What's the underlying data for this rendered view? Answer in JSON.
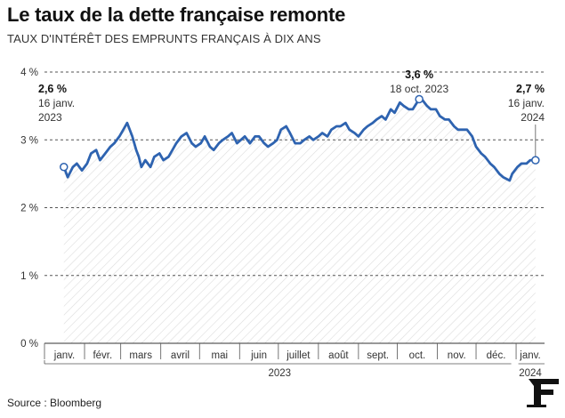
{
  "title": "Le taux de la dette française remonte",
  "subtitle": "TAUX D'INTÉRÊT DES EMPRUNTS FRANÇAIS À DIX ANS",
  "source": "Source : Bloomberg",
  "colors": {
    "line": "#2e63b0",
    "grid": "#555555",
    "hatch": "#dcdcdc",
    "text": "#333333"
  },
  "chart_data": {
    "type": "line",
    "ylim": [
      0,
      4
    ],
    "yticks": [
      {
        "value": 0,
        "label": "0 %"
      },
      {
        "value": 1,
        "label": "1 %"
      },
      {
        "value": 2,
        "label": "2 %"
      },
      {
        "value": 3,
        "label": "3 %"
      },
      {
        "value": 4,
        "label": "4 %"
      }
    ],
    "xlim": [
      "2023-01-01",
      "2024-01-23"
    ],
    "month_labels": [
      {
        "label": "janv.",
        "date": "2023-01-01"
      },
      {
        "label": "févr.",
        "date": "2023-02-01"
      },
      {
        "label": "mars",
        "date": "2023-03-01"
      },
      {
        "label": "avril",
        "date": "2023-04-01"
      },
      {
        "label": "mai",
        "date": "2023-05-01"
      },
      {
        "label": "juin",
        "date": "2023-06-01"
      },
      {
        "label": "juillet",
        "date": "2023-07-01"
      },
      {
        "label": "août",
        "date": "2023-08-01"
      },
      {
        "label": "sept.",
        "date": "2023-09-01"
      },
      {
        "label": "oct.",
        "date": "2023-10-01"
      },
      {
        "label": "nov.",
        "date": "2023-11-01"
      },
      {
        "label": "déc.",
        "date": "2023-12-01"
      },
      {
        "label": "janv.",
        "date": "2024-01-01"
      }
    ],
    "year_labels": [
      {
        "label": "2023",
        "date": "2023-07-02"
      },
      {
        "label": "2024",
        "date": "2024-01-12"
      }
    ],
    "series": [
      {
        "points": [
          [
            "2023-01-16",
            2.6
          ],
          [
            "2023-01-19",
            2.45
          ],
          [
            "2023-01-23",
            2.6
          ],
          [
            "2023-01-26",
            2.65
          ],
          [
            "2023-01-30",
            2.55
          ],
          [
            "2023-02-03",
            2.65
          ],
          [
            "2023-02-06",
            2.8
          ],
          [
            "2023-02-10",
            2.85
          ],
          [
            "2023-02-13",
            2.7
          ],
          [
            "2023-02-17",
            2.8
          ],
          [
            "2023-02-21",
            2.9
          ],
          [
            "2023-02-24",
            2.95
          ],
          [
            "2023-02-28",
            3.05
          ],
          [
            "2023-03-03",
            3.15
          ],
          [
            "2023-03-06",
            3.25
          ],
          [
            "2023-03-10",
            3.05
          ],
          [
            "2023-03-13",
            2.85
          ],
          [
            "2023-03-15",
            2.75
          ],
          [
            "2023-03-17",
            2.6
          ],
          [
            "2023-03-20",
            2.7
          ],
          [
            "2023-03-24",
            2.6
          ],
          [
            "2023-03-27",
            2.75
          ],
          [
            "2023-03-31",
            2.8
          ],
          [
            "2023-04-03",
            2.7
          ],
          [
            "2023-04-07",
            2.75
          ],
          [
            "2023-04-10",
            2.85
          ],
          [
            "2023-04-13",
            2.95
          ],
          [
            "2023-04-17",
            3.05
          ],
          [
            "2023-04-21",
            3.1
          ],
          [
            "2023-04-25",
            2.95
          ],
          [
            "2023-04-28",
            2.9
          ],
          [
            "2023-05-02",
            2.95
          ],
          [
            "2023-05-05",
            3.05
          ],
          [
            "2023-05-09",
            2.9
          ],
          [
            "2023-05-12",
            2.85
          ],
          [
            "2023-05-16",
            2.95
          ],
          [
            "2023-05-19",
            3.0
          ],
          [
            "2023-05-23",
            3.05
          ],
          [
            "2023-05-26",
            3.1
          ],
          [
            "2023-05-30",
            2.95
          ],
          [
            "2023-06-02",
            3.0
          ],
          [
            "2023-06-05",
            3.05
          ],
          [
            "2023-06-09",
            2.95
          ],
          [
            "2023-06-13",
            3.05
          ],
          [
            "2023-06-16",
            3.05
          ],
          [
            "2023-06-20",
            2.95
          ],
          [
            "2023-06-23",
            2.9
          ],
          [
            "2023-06-27",
            2.95
          ],
          [
            "2023-06-30",
            3.0
          ],
          [
            "2023-07-03",
            3.15
          ],
          [
            "2023-07-07",
            3.2
          ],
          [
            "2023-07-10",
            3.1
          ],
          [
            "2023-07-14",
            2.95
          ],
          [
            "2023-07-18",
            2.95
          ],
          [
            "2023-07-21",
            3.0
          ],
          [
            "2023-07-25",
            3.05
          ],
          [
            "2023-07-28",
            3.0
          ],
          [
            "2023-08-01",
            3.05
          ],
          [
            "2023-08-04",
            3.1
          ],
          [
            "2023-08-08",
            3.05
          ],
          [
            "2023-08-11",
            3.15
          ],
          [
            "2023-08-15",
            3.2
          ],
          [
            "2023-08-18",
            3.2
          ],
          [
            "2023-08-22",
            3.25
          ],
          [
            "2023-08-25",
            3.15
          ],
          [
            "2023-08-29",
            3.1
          ],
          [
            "2023-09-01",
            3.05
          ],
          [
            "2023-09-05",
            3.15
          ],
          [
            "2023-09-08",
            3.2
          ],
          [
            "2023-09-12",
            3.25
          ],
          [
            "2023-09-15",
            3.3
          ],
          [
            "2023-09-19",
            3.35
          ],
          [
            "2023-09-22",
            3.3
          ],
          [
            "2023-09-26",
            3.45
          ],
          [
            "2023-09-29",
            3.4
          ],
          [
            "2023-10-03",
            3.55
          ],
          [
            "2023-10-06",
            3.5
          ],
          [
            "2023-10-10",
            3.45
          ],
          [
            "2023-10-13",
            3.45
          ],
          [
            "2023-10-18",
            3.6
          ],
          [
            "2023-10-20",
            3.6
          ],
          [
            "2023-10-24",
            3.5
          ],
          [
            "2023-10-27",
            3.45
          ],
          [
            "2023-10-31",
            3.45
          ],
          [
            "2023-11-03",
            3.35
          ],
          [
            "2023-11-07",
            3.3
          ],
          [
            "2023-11-10",
            3.3
          ],
          [
            "2023-11-14",
            3.2
          ],
          [
            "2023-11-17",
            3.15
          ],
          [
            "2023-11-21",
            3.15
          ],
          [
            "2023-11-24",
            3.15
          ],
          [
            "2023-11-28",
            3.05
          ],
          [
            "2023-12-01",
            2.9
          ],
          [
            "2023-12-05",
            2.8
          ],
          [
            "2023-12-08",
            2.75
          ],
          [
            "2023-12-12",
            2.65
          ],
          [
            "2023-12-15",
            2.6
          ],
          [
            "2023-12-19",
            2.5
          ],
          [
            "2023-12-22",
            2.45
          ],
          [
            "2023-12-27",
            2.4
          ],
          [
            "2023-12-29",
            2.5
          ],
          [
            "2024-01-02",
            2.6
          ],
          [
            "2024-01-05",
            2.65
          ],
          [
            "2024-01-09",
            2.65
          ],
          [
            "2024-01-12",
            2.7
          ],
          [
            "2024-01-16",
            2.7
          ]
        ]
      }
    ],
    "annotations": [
      {
        "date": "2023-01-16",
        "value": 2.6,
        "value_label": "2,6 %",
        "lines": [
          "16 janv.",
          "2023"
        ]
      },
      {
        "date": "2023-10-18",
        "value": 3.6,
        "value_label": "3,6 %",
        "lines": [
          "18 oct. 2023"
        ]
      },
      {
        "date": "2024-01-16",
        "value": 2.7,
        "value_label": "2,7 %",
        "lines": [
          "16 janv.",
          "2024"
        ]
      }
    ]
  }
}
